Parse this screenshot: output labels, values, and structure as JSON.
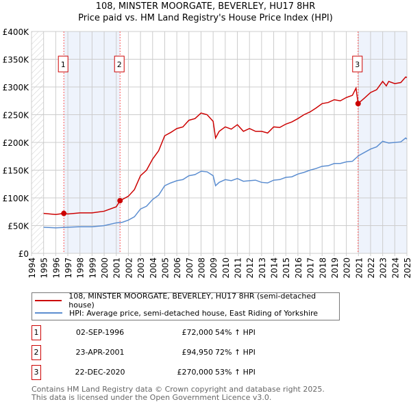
{
  "title": "108, MINSTER MOORGATE, BEVERLEY, HU17 8HR",
  "subtitle": "Price paid vs. HM Land Registry's House Price Index (HPI)",
  "chart_data": {
    "type": "line",
    "xlim": [
      1994,
      2025
    ],
    "ylim": [
      0,
      400000
    ],
    "y_ticks": [
      {
        "v": 0,
        "label": "£0"
      },
      {
        "v": 50000,
        "label": "£50K"
      },
      {
        "v": 100000,
        "label": "£100K"
      },
      {
        "v": 150000,
        "label": "£150K"
      },
      {
        "v": 200000,
        "label": "£200K"
      },
      {
        "v": 250000,
        "label": "£250K"
      },
      {
        "v": 300000,
        "label": "£300K"
      },
      {
        "v": 350000,
        "label": "£350K"
      },
      {
        "v": 400000,
        "label": "£400K"
      }
    ],
    "x_ticks": [
      "1994",
      "1995",
      "1996",
      "1997",
      "1998",
      "1999",
      "2000",
      "2001",
      "2002",
      "2003",
      "2004",
      "2005",
      "2006",
      "2007",
      "2008",
      "2009",
      "2010",
      "2011",
      "2012",
      "2013",
      "2014",
      "2015",
      "2016",
      "2017",
      "2018",
      "2019",
      "2020",
      "2021",
      "2022",
      "2023",
      "2024",
      "2025"
    ],
    "colors": {
      "property": "#cc0000",
      "hpi": "#5b8dd0",
      "shade": "#eef3fc",
      "marker": "#ff5555"
    },
    "series": [
      {
        "name": "108, MINSTER MOORGATE, BEVERLEY, HU17 8HR (semi-detached house)",
        "points": [
          [
            1995,
            72
          ],
          [
            1996,
            70
          ],
          [
            1996.67,
            72
          ],
          [
            1997,
            71
          ],
          [
            1998,
            73
          ],
          [
            1999,
            73
          ],
          [
            2000,
            76
          ],
          [
            2001,
            84
          ],
          [
            2001.31,
            94.95
          ],
          [
            2002,
            103
          ],
          [
            2002.5,
            115
          ],
          [
            2003,
            140
          ],
          [
            2003.5,
            150
          ],
          [
            2004,
            170
          ],
          [
            2004.5,
            185
          ],
          [
            2005,
            212
          ],
          [
            2005.5,
            218
          ],
          [
            2006,
            225
          ],
          [
            2006.5,
            228
          ],
          [
            2007,
            240
          ],
          [
            2007.5,
            243
          ],
          [
            2008,
            253
          ],
          [
            2008.5,
            250
          ],
          [
            2009,
            238
          ],
          [
            2009.2,
            208
          ],
          [
            2009.5,
            220
          ],
          [
            2010,
            228
          ],
          [
            2010.5,
            224
          ],
          [
            2011,
            232
          ],
          [
            2011.5,
            220
          ],
          [
            2012,
            225
          ],
          [
            2012.5,
            220
          ],
          [
            2013,
            220
          ],
          [
            2013.5,
            217
          ],
          [
            2014,
            228
          ],
          [
            2014.5,
            227
          ],
          [
            2015,
            233
          ],
          [
            2015.5,
            237
          ],
          [
            2016,
            243
          ],
          [
            2016.5,
            250
          ],
          [
            2017,
            255
          ],
          [
            2017.5,
            262
          ],
          [
            2018,
            270
          ],
          [
            2018.5,
            272
          ],
          [
            2019,
            277
          ],
          [
            2019.5,
            275
          ],
          [
            2020,
            281
          ],
          [
            2020.5,
            285
          ],
          [
            2020.8,
            298
          ],
          [
            2020.97,
            270
          ],
          [
            2021.5,
            280
          ],
          [
            2022,
            290
          ],
          [
            2022.5,
            295
          ],
          [
            2023,
            310
          ],
          [
            2023.3,
            302
          ],
          [
            2023.5,
            310
          ],
          [
            2024,
            306
          ],
          [
            2024.5,
            308
          ],
          [
            2024.9,
            318
          ],
          [
            2025,
            317
          ]
        ]
      },
      {
        "name": "HPI: Average price, semi-detached house, East Riding of Yorkshire",
        "points": [
          [
            1995,
            47
          ],
          [
            1996,
            46
          ],
          [
            1997,
            47
          ],
          [
            1998,
            48
          ],
          [
            1999,
            48
          ],
          [
            2000,
            50
          ],
          [
            2001,
            55
          ],
          [
            2001.5,
            56
          ],
          [
            2002,
            60
          ],
          [
            2002.5,
            66
          ],
          [
            2003,
            80
          ],
          [
            2003.5,
            85
          ],
          [
            2004,
            97
          ],
          [
            2004.5,
            105
          ],
          [
            2005,
            122
          ],
          [
            2005.5,
            127
          ],
          [
            2006,
            131
          ],
          [
            2006.5,
            133
          ],
          [
            2007,
            140
          ],
          [
            2007.5,
            142
          ],
          [
            2008,
            148
          ],
          [
            2008.5,
            147
          ],
          [
            2009,
            140
          ],
          [
            2009.2,
            122
          ],
          [
            2009.5,
            128
          ],
          [
            2010,
            133
          ],
          [
            2010.5,
            131
          ],
          [
            2011,
            135
          ],
          [
            2011.5,
            130
          ],
          [
            2012,
            131
          ],
          [
            2012.5,
            132
          ],
          [
            2013,
            128
          ],
          [
            2013.5,
            127
          ],
          [
            2014,
            132
          ],
          [
            2014.5,
            133
          ],
          [
            2015,
            137
          ],
          [
            2015.5,
            138
          ],
          [
            2016,
            143
          ],
          [
            2016.5,
            146
          ],
          [
            2017,
            150
          ],
          [
            2017.5,
            153
          ],
          [
            2018,
            157
          ],
          [
            2018.5,
            158
          ],
          [
            2019,
            162
          ],
          [
            2019.5,
            162
          ],
          [
            2020,
            165
          ],
          [
            2020.5,
            166
          ],
          [
            2021,
            176
          ],
          [
            2021.5,
            182
          ],
          [
            2022,
            188
          ],
          [
            2022.5,
            192
          ],
          [
            2023,
            202
          ],
          [
            2023.5,
            199
          ],
          [
            2024,
            200
          ],
          [
            2024.5,
            201
          ],
          [
            2024.9,
            208
          ],
          [
            2025,
            206
          ]
        ]
      }
    ],
    "y_unit": "thousands GBP",
    "sales": [
      {
        "label": "1",
        "x": 1996.67,
        "price": 72000,
        "date": "02-SEP-1996",
        "price_text": "£72,000",
        "hpi_text": "54% ↑ HPI"
      },
      {
        "label": "2",
        "x": 2001.31,
        "price": 94950,
        "date": "23-APR-2001",
        "price_text": "£94,950",
        "hpi_text": "72% ↑ HPI"
      },
      {
        "label": "3",
        "x": 2020.97,
        "price": 270000,
        "date": "22-DEC-2020",
        "price_text": "£270,000",
        "hpi_text": "53% ↑ HPI"
      }
    ],
    "legend": "below"
  },
  "footer": {
    "line1": "Contains HM Land Registry data © Crown copyright and database right 2025.",
    "line2": "This data is licensed under the Open Government Licence v3.0."
  }
}
